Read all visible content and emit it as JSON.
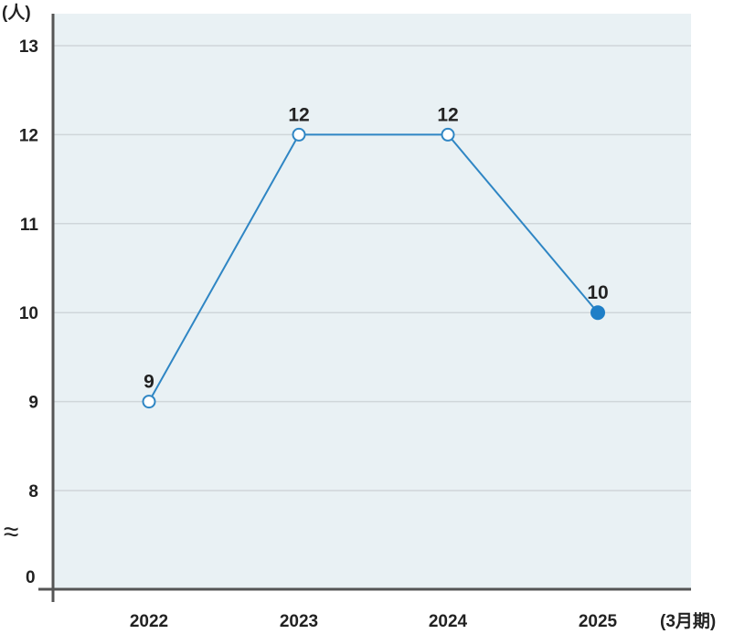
{
  "colors": {
    "plot_background": "#e9f1f4",
    "line": "#2f86c4",
    "latest_point": "#1f7fc7",
    "grid": "#cfd6da",
    "axis": "#555555",
    "text": "#222222"
  },
  "chart_data": {
    "type": "line",
    "y_unit_label": "(人)",
    "x_unit_label": "(3月期)",
    "categories": [
      "2022",
      "2023",
      "2024",
      "2025"
    ],
    "values": [
      9,
      12,
      12,
      10
    ],
    "data_labels": [
      "9",
      "12",
      "12",
      "10"
    ],
    "y_ticks": [
      "13",
      "12",
      "11",
      "10",
      "9",
      "8"
    ],
    "y_base_label": "0",
    "axis_break_symbol": "≈",
    "ylim": [
      8,
      13
    ],
    "grid": true,
    "legend": "none",
    "marker_style": [
      "hollow",
      "hollow",
      "hollow",
      "filled"
    ]
  }
}
